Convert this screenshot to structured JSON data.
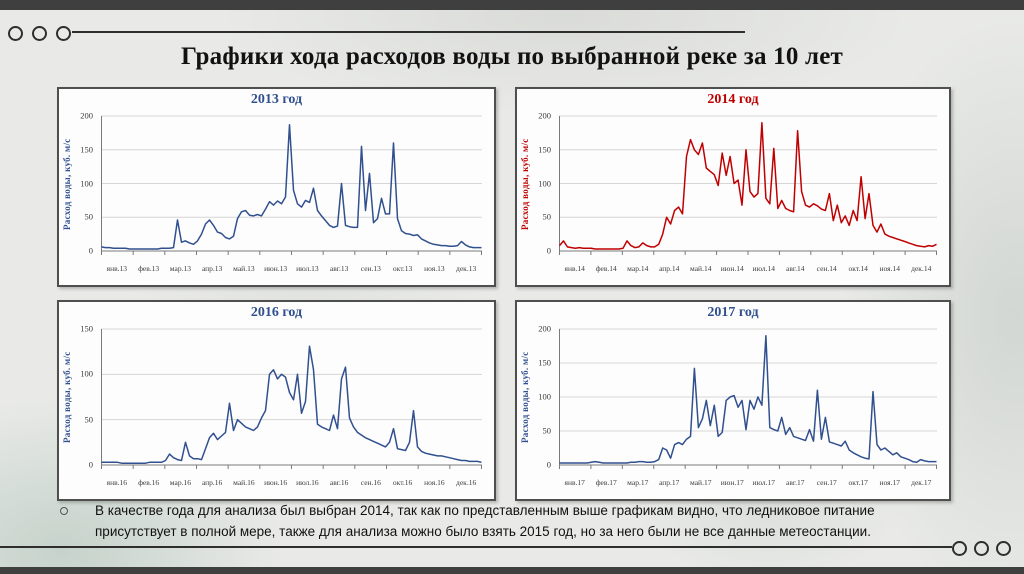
{
  "slide": {
    "title": "Графики хода расходов воды по выбранной реке за 10 лет",
    "note": "В качестве года для анализа был выбран 2014, так как по представленным выше графикам видно, что ледниковое питание присутствует в полной мере, также для анализа можно было взять 2015 год, но за него были не все данные метеостанции."
  },
  "colors": {
    "blue": "#31508f",
    "red": "#c00000",
    "grid": "#d6d6d6",
    "axis": "#7a7a7a",
    "tick_text": "#3b3b3b",
    "frame": "#4f4f4f",
    "edge_bar": "#3f3f3f"
  },
  "chart_data": [
    {
      "type": "line",
      "title": "2013 год",
      "color": "#31508f",
      "ylabel": "Расход воды, куб. м/с",
      "ylim": [
        0,
        200
      ],
      "yticks": [
        0,
        50,
        100,
        150,
        200
      ],
      "grid": true,
      "xticklabels": [
        "янв.13",
        "фев.13",
        "мар.13",
        "апр.13",
        "май.13",
        "июн.13",
        "июл.13",
        "авг.13",
        "сен.13",
        "окт.13",
        "ноя.13",
        "дек.13"
      ],
      "values": [
        6,
        5,
        5,
        4,
        4,
        4,
        4,
        3,
        3,
        3,
        3,
        3,
        3,
        3,
        3,
        4,
        4,
        4,
        5,
        46,
        13,
        15,
        12,
        10,
        15,
        25,
        40,
        46,
        38,
        28,
        26,
        20,
        18,
        22,
        48,
        58,
        60,
        53,
        52,
        54,
        52,
        62,
        73,
        68,
        74,
        70,
        80,
        187,
        90,
        70,
        65,
        75,
        72,
        93,
        60,
        52,
        45,
        38,
        35,
        37,
        100,
        38,
        36,
        35,
        35,
        155,
        60,
        115,
        42,
        48,
        78,
        55,
        55,
        160,
        48,
        30,
        26,
        25,
        23,
        24,
        18,
        15,
        12,
        10,
        9,
        8,
        8,
        7,
        7,
        8,
        14,
        9,
        6,
        5,
        5,
        5
      ]
    },
    {
      "type": "line",
      "title": "2014 год",
      "color": "#c00000",
      "ylabel": "Расход воды, куб. м/с",
      "ylim": [
        0,
        200
      ],
      "yticks": [
        0,
        50,
        100,
        150,
        200
      ],
      "grid": true,
      "xticklabels": [
        "янв.14",
        "фев.14",
        "мар.14",
        "апр.14",
        "май.14",
        "июн.14",
        "июл.14",
        "авг.14",
        "сен.14",
        "окт.14",
        "ноя.14",
        "дек.14"
      ],
      "values": [
        8,
        15,
        6,
        5,
        4,
        5,
        4,
        4,
        4,
        3,
        3,
        3,
        3,
        3,
        3,
        3,
        4,
        15,
        8,
        5,
        6,
        12,
        8,
        6,
        6,
        10,
        25,
        50,
        40,
        60,
        65,
        55,
        140,
        165,
        150,
        143,
        160,
        123,
        118,
        113,
        97,
        145,
        112,
        140,
        100,
        105,
        68,
        150,
        88,
        80,
        85,
        190,
        78,
        70,
        152,
        63,
        75,
        63,
        60,
        58,
        178,
        88,
        68,
        65,
        70,
        67,
        62,
        60,
        85,
        45,
        68,
        42,
        52,
        38,
        60,
        45,
        110,
        48,
        85,
        38,
        28,
        40,
        25,
        22,
        20,
        18,
        16,
        14,
        12,
        10,
        8,
        7,
        6,
        8,
        7,
        10
      ]
    },
    {
      "type": "line",
      "title": "2016 год",
      "color": "#31508f",
      "ylabel": "Расход воды, куб. м/с",
      "ylim": [
        0,
        150
      ],
      "yticks": [
        0,
        50,
        100,
        150
      ],
      "grid": true,
      "xticklabels": [
        "янв.16",
        "фев.16",
        "мар.16",
        "апр.16",
        "май.16",
        "июн.16",
        "июл.16",
        "авг.16",
        "сен.16",
        "окт.16",
        "ноя.16",
        "дек.16"
      ],
      "values": [
        3,
        3,
        3,
        3,
        3,
        2,
        2,
        2,
        2,
        2,
        2,
        2,
        3,
        3,
        3,
        3,
        5,
        12,
        8,
        6,
        5,
        25,
        10,
        7,
        7,
        6,
        18,
        30,
        35,
        28,
        32,
        36,
        68,
        38,
        50,
        46,
        42,
        40,
        38,
        42,
        52,
        60,
        100,
        105,
        95,
        100,
        97,
        80,
        72,
        100,
        57,
        70,
        131,
        105,
        45,
        42,
        40,
        38,
        55,
        40,
        95,
        108,
        52,
        42,
        36,
        33,
        30,
        28,
        26,
        24,
        22,
        20,
        25,
        40,
        18,
        17,
        16,
        25,
        60,
        20,
        15,
        13,
        12,
        11,
        10,
        10,
        9,
        8,
        7,
        6,
        5,
        5,
        4,
        4,
        4,
        3
      ]
    },
    {
      "type": "line",
      "title": "2017 год",
      "color": "#31508f",
      "ylabel": "Расход воды, куб. м/с",
      "ylim": [
        0,
        200
      ],
      "yticks": [
        0,
        50,
        100,
        150,
        200
      ],
      "grid": true,
      "xticklabels": [
        "янв.17",
        "фев.17",
        "мар.17",
        "апр.17",
        "май.17",
        "июн.17",
        "июл.17",
        "авг.17",
        "сен.17",
        "окт.17",
        "ноя.17",
        "дек.17"
      ],
      "values": [
        3,
        3,
        3,
        3,
        3,
        3,
        3,
        3,
        4,
        5,
        4,
        3,
        3,
        3,
        3,
        3,
        3,
        3,
        4,
        4,
        5,
        5,
        4,
        4,
        5,
        8,
        25,
        22,
        10,
        30,
        33,
        30,
        38,
        42,
        142,
        55,
        68,
        95,
        58,
        88,
        42,
        48,
        95,
        100,
        102,
        85,
        95,
        52,
        95,
        82,
        100,
        88,
        190,
        55,
        52,
        50,
        70,
        45,
        55,
        42,
        40,
        38,
        36,
        52,
        35,
        110,
        38,
        70,
        34,
        32,
        30,
        28,
        35,
        22,
        18,
        15,
        12,
        10,
        9,
        108,
        30,
        22,
        25,
        20,
        15,
        18,
        12,
        10,
        8,
        5,
        4,
        8,
        6,
        5,
        5,
        5
      ]
    }
  ]
}
